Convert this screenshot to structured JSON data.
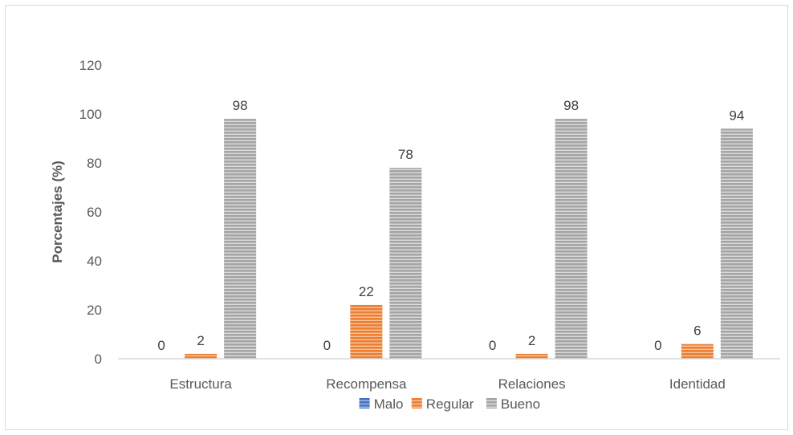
{
  "chart_data": {
    "type": "bar",
    "title": "",
    "xlabel": "",
    "ylabel": "Porcentajes (%)",
    "ylim": [
      0,
      120
    ],
    "yticks": [
      0,
      20,
      40,
      60,
      80,
      100,
      120
    ],
    "grid": false,
    "legend_position": "bottom",
    "categories": [
      "Estructura",
      "Recompensa",
      "Relaciones",
      "Identidad"
    ],
    "series": [
      {
        "name": "Malo",
        "values": [
          0,
          0,
          0,
          0
        ],
        "color": "#4472c4"
      },
      {
        "name": "Regular",
        "values": [
          2,
          22,
          2,
          6
        ],
        "color": "#ed7d31"
      },
      {
        "name": "Bueno",
        "values": [
          98,
          78,
          98,
          94
        ],
        "color": "#a5a5a5"
      }
    ]
  }
}
